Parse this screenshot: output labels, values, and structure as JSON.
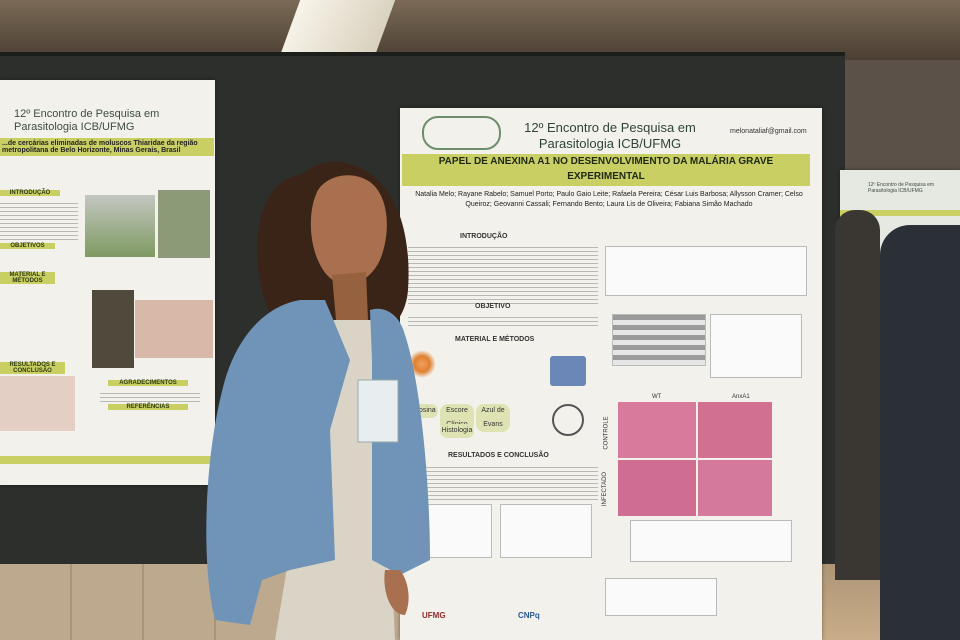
{
  "main_poster": {
    "header": "12º Encontro de Pesquisa em Parasitologia ICB/UFMG",
    "email": "melonataliaf@gmail.com",
    "title": "PAPEL DE ANEXINA A1 NO DESENVOLVIMENTO DA MALÁRIA GRAVE EXPERIMENTAL",
    "authors": "Natalia Melo; Rayane Rabelo; Samuel Porto; Paulo Gaio Leite; Rafaela Pereira; César Luis Barbosa; Allysson Cramer; Celso Queiroz; Geovanni Cassali; Fernando Bento; Laura Lis de Oliveira; Fabiana Simão Machado",
    "sections": {
      "introduction": "INTRODUÇÃO",
      "objective": "OBJETIVO",
      "methods": "MATERIAL E MÉTODOS",
      "results": "RESULTADOS E CONCLUSÃO"
    },
    "method_steps": [
      "Eosina",
      "Escore Clínico",
      "Azul de Evans",
      "Histologia"
    ],
    "histology": {
      "row_1": "CONTROLE",
      "row_2": "INFECTADO",
      "col_1": "WT",
      "col_2": "AnxA1"
    },
    "logos": [
      "UFMG",
      "CNPq"
    ]
  },
  "left_poster": {
    "header": "12º Encontro de Pesquisa em Parasitologia ICB/UFMG",
    "title": "...de cercárias eliminadas de moluscos Thiaridae da região metropolitana de Belo Horizonte, Minas Gerais, Brasil",
    "sections": [
      "INTRODUÇÃO",
      "OBJETIVOS",
      "MATERIAL E MÉTODOS",
      "RESULTADOS E CONCLUSÃO",
      "AGRADECIMENTOS",
      "REFERÊNCIAS"
    ]
  },
  "right_poster": {
    "header": "12º Encontro de Pesquisa em Parasitologia ICB/UFMG"
  }
}
